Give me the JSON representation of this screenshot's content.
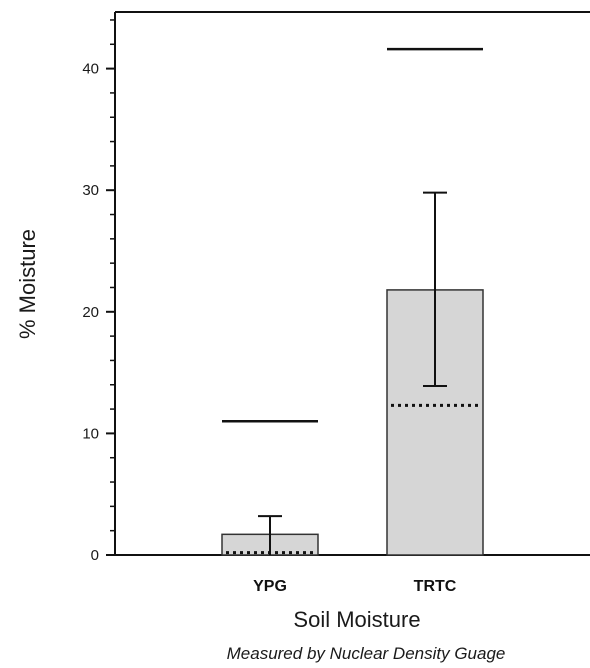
{
  "chart_data": {
    "type": "bar",
    "categories": [
      "YPG",
      "TRTC"
    ],
    "values": [
      1.7,
      21.8
    ],
    "error_bars": [
      {
        "low": 0,
        "high": 3.2
      },
      {
        "low": 13.9,
        "high": 29.8
      }
    ],
    "dotted_reference": [
      0.2,
      12.3
    ],
    "upper_reference": [
      11.0,
      41.6
    ],
    "xlabel": "Soil Moisture",
    "subtitle": "Measured by Nuclear Density Guage",
    "ylabel": "% Moisture",
    "ylim": [
      0,
      45
    ],
    "yticks": [
      0,
      10,
      20,
      30,
      40
    ],
    "grid": false,
    "colors": {
      "bar_fill": "#d6d6d6",
      "bar_stroke": "#333333",
      "line": "#111111"
    }
  }
}
